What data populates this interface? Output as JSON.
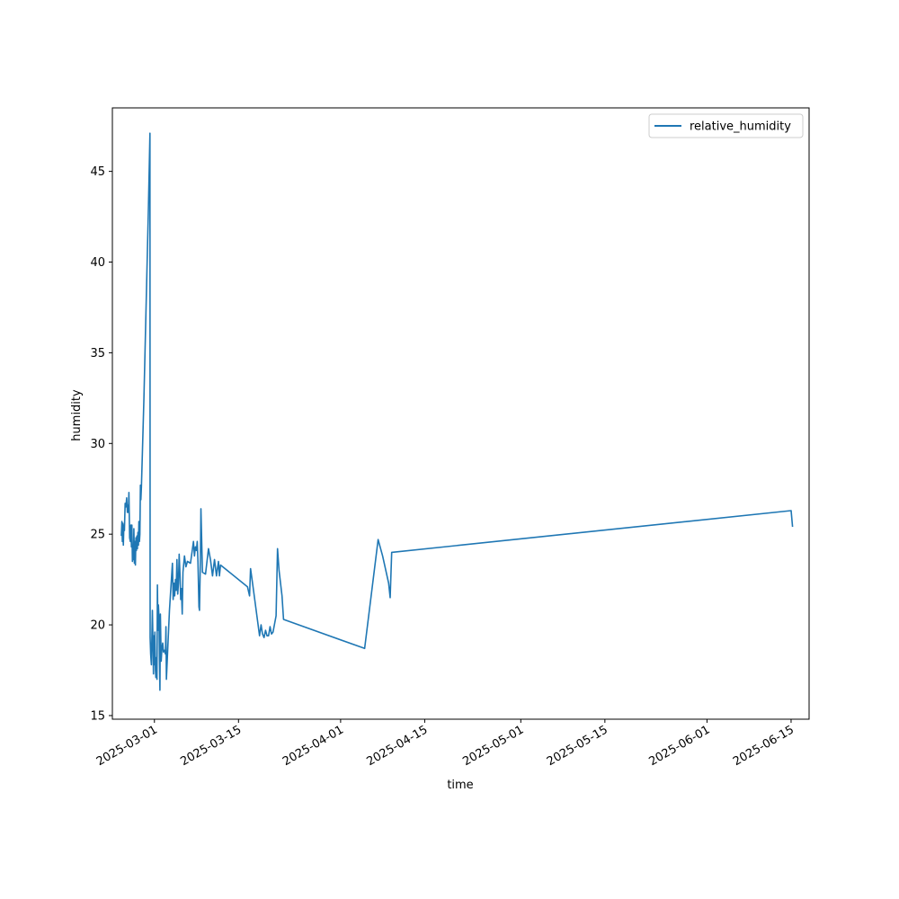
{
  "chart_data": {
    "type": "line",
    "title": "",
    "xlabel": "time",
    "ylabel": "humidity",
    "x_type": "date",
    "xlim": [
      "2025-02-22",
      "2025-06-18"
    ],
    "ylim": [
      14.8,
      48.5
    ],
    "y_ticks": [
      15,
      20,
      25,
      30,
      35,
      40,
      45
    ],
    "x_ticks": [
      "2025-03-01",
      "2025-03-15",
      "2025-04-01",
      "2025-04-15",
      "2025-05-01",
      "2025-05-15",
      "2025-06-01",
      "2025-06-15"
    ],
    "grid": false,
    "legend": {
      "position": "upper right"
    },
    "series": [
      {
        "name": "relative_humidity",
        "color": "#1f77b4",
        "points": [
          [
            "2025-02-23T12:00",
            24.9
          ],
          [
            "2025-02-23T14:00",
            25.7
          ],
          [
            "2025-02-23T16:00",
            24.6
          ],
          [
            "2025-02-23T18:00",
            25.6
          ],
          [
            "2025-02-23T20:00",
            24.4
          ],
          [
            "2025-02-23T22:00",
            25.5
          ],
          [
            "2025-02-24T00:00",
            25.2
          ],
          [
            "2025-02-24T03:00",
            26.7
          ],
          [
            "2025-02-24T06:00",
            26.5
          ],
          [
            "2025-02-24T09:00",
            27.0
          ],
          [
            "2025-02-24T12:00",
            26.2
          ],
          [
            "2025-02-24T14:00",
            26.6
          ],
          [
            "2025-02-24T16:00",
            26.2
          ],
          [
            "2025-02-24T18:00",
            27.3
          ],
          [
            "2025-02-24T21:00",
            24.8
          ],
          [
            "2025-02-25T00:00",
            24.6
          ],
          [
            "2025-02-25T02:00",
            25.5
          ],
          [
            "2025-02-25T04:00",
            24.3
          ],
          [
            "2025-02-25T06:00",
            25.5
          ],
          [
            "2025-02-25T08:00",
            23.5
          ],
          [
            "2025-02-25T10:00",
            24.3
          ],
          [
            "2025-02-25T12:00",
            23.6
          ],
          [
            "2025-02-25T14:00",
            25.3
          ],
          [
            "2025-02-25T16:00",
            23.4
          ],
          [
            "2025-02-25T18:00",
            24.6
          ],
          [
            "2025-02-25T20:00",
            23.3
          ],
          [
            "2025-02-25T22:00",
            24.8
          ],
          [
            "2025-02-26T00:00",
            24.1
          ],
          [
            "2025-02-26T02:00",
            24.9
          ],
          [
            "2025-02-26T04:00",
            24.2
          ],
          [
            "2025-02-26T06:00",
            25.1
          ],
          [
            "2025-02-26T08:00",
            24.4
          ],
          [
            "2025-02-26T10:00",
            25.7
          ],
          [
            "2025-02-26T12:00",
            24.6
          ],
          [
            "2025-02-26T14:00",
            25.0
          ],
          [
            "2025-02-26T16:00",
            27.7
          ],
          [
            "2025-02-26T18:00",
            26.9
          ],
          [
            "2025-02-26T20:00",
            27.6
          ],
          [
            "2025-02-27T00:00",
            29.5
          ],
          [
            "2025-02-27T06:00",
            32.5
          ],
          [
            "2025-02-28T00:00",
            43.0
          ],
          [
            "2025-02-28T06:00",
            47.1
          ],
          [
            "2025-02-28T07:00",
            19.3
          ],
          [
            "2025-02-28T09:00",
            18.4
          ],
          [
            "2025-02-28T11:00",
            18.0
          ],
          [
            "2025-02-28T12:00",
            17.8
          ],
          [
            "2025-02-28T14:00",
            19.5
          ],
          [
            "2025-02-28T16:00",
            20.8
          ],
          [
            "2025-02-28T18:00",
            19.2
          ],
          [
            "2025-02-28T20:00",
            17.3
          ],
          [
            "2025-02-28T22:00",
            19.4
          ],
          [
            "2025-03-01T00:00",
            17.8
          ],
          [
            "2025-03-01T02:00",
            19.6
          ],
          [
            "2025-03-01T04:00",
            17.5
          ],
          [
            "2025-03-01T06:00",
            17.1
          ],
          [
            "2025-03-01T08:00",
            18.2
          ],
          [
            "2025-03-01T10:00",
            17.0
          ],
          [
            "2025-03-01T12:00",
            22.2
          ],
          [
            "2025-03-01T14:00",
            19.7
          ],
          [
            "2025-03-01T16:00",
            21.1
          ],
          [
            "2025-03-01T18:00",
            20.5
          ],
          [
            "2025-03-01T20:00",
            18.2
          ],
          [
            "2025-03-01T22:00",
            16.4
          ],
          [
            "2025-03-02T00:00",
            20.6
          ],
          [
            "2025-03-02T03:00",
            18.0
          ],
          [
            "2025-03-02T06:00",
            18.7
          ],
          [
            "2025-03-02T09:00",
            19.0
          ],
          [
            "2025-03-02T12:00",
            18.5
          ],
          [
            "2025-03-02T16:00",
            18.6
          ],
          [
            "2025-03-02T20:00",
            18.4
          ],
          [
            "2025-03-02T22:00",
            19.9
          ],
          [
            "2025-03-03T00:00",
            17.0
          ],
          [
            "2025-03-03T12:00",
            20.8
          ],
          [
            "2025-03-04T00:00",
            23.4
          ],
          [
            "2025-03-04T03:00",
            21.4
          ],
          [
            "2025-03-04T06:00",
            22.3
          ],
          [
            "2025-03-04T09:00",
            21.6
          ],
          [
            "2025-03-04T12:00",
            22.5
          ],
          [
            "2025-03-04T15:00",
            21.9
          ],
          [
            "2025-03-04T18:00",
            23.6
          ],
          [
            "2025-03-04T21:00",
            21.7
          ],
          [
            "2025-03-05T00:00",
            22.3
          ],
          [
            "2025-03-05T03:00",
            23.9
          ],
          [
            "2025-03-05T06:00",
            22.8
          ],
          [
            "2025-03-05T09:00",
            21.4
          ],
          [
            "2025-03-05T12:00",
            22.0
          ],
          [
            "2025-03-05T15:00",
            20.6
          ],
          [
            "2025-03-05T18:00",
            22.9
          ],
          [
            "2025-03-06T00:00",
            23.8
          ],
          [
            "2025-03-06T06:00",
            23.2
          ],
          [
            "2025-03-06T12:00",
            23.5
          ],
          [
            "2025-03-07T00:00",
            23.4
          ],
          [
            "2025-03-07T08:00",
            24.2
          ],
          [
            "2025-03-07T12:00",
            24.6
          ],
          [
            "2025-03-07T16:00",
            23.8
          ],
          [
            "2025-03-07T20:00",
            24.3
          ],
          [
            "2025-03-08T00:00",
            24.1
          ],
          [
            "2025-03-08T03:00",
            24.6
          ],
          [
            "2025-03-08T06:00",
            23.5
          ],
          [
            "2025-03-08T10:00",
            21.0
          ],
          [
            "2025-03-08T12:00",
            20.8
          ],
          [
            "2025-03-08T16:00",
            23.9
          ],
          [
            "2025-03-08T18:00",
            26.4
          ],
          [
            "2025-03-09T00:00",
            22.9
          ],
          [
            "2025-03-09T12:00",
            22.8
          ],
          [
            "2025-03-10T00:00",
            24.2
          ],
          [
            "2025-03-10T08:00",
            23.6
          ],
          [
            "2025-03-10T16:00",
            22.7
          ],
          [
            "2025-03-11T00:00",
            23.6
          ],
          [
            "2025-03-11T08:00",
            22.7
          ],
          [
            "2025-03-11T16:00",
            23.5
          ],
          [
            "2025-03-11T20:00",
            22.7
          ],
          [
            "2025-03-12T00:00",
            23.3
          ],
          [
            "2025-03-16T12:00",
            22.1
          ],
          [
            "2025-03-16T20:00",
            21.6
          ],
          [
            "2025-03-17T00:00",
            23.1
          ],
          [
            "2025-03-17T12:00",
            21.9
          ],
          [
            "2025-03-18T12:00",
            19.4
          ],
          [
            "2025-03-18T18:00",
            20.0
          ],
          [
            "2025-03-19T00:00",
            19.5
          ],
          [
            "2025-03-19T06:00",
            19.3
          ],
          [
            "2025-03-19T12:00",
            19.7
          ],
          [
            "2025-03-19T18:00",
            19.4
          ],
          [
            "2025-03-20T00:00",
            19.4
          ],
          [
            "2025-03-20T06:00",
            19.9
          ],
          [
            "2025-03-20T12:00",
            19.5
          ],
          [
            "2025-03-20T18:00",
            19.6
          ],
          [
            "2025-03-21T06:00",
            20.5
          ],
          [
            "2025-03-21T12:00",
            24.2
          ],
          [
            "2025-03-21T18:00",
            23.0
          ],
          [
            "2025-03-22T06:00",
            21.6
          ],
          [
            "2025-03-22T12:00",
            20.3
          ],
          [
            "2025-04-05T00:00",
            18.7
          ],
          [
            "2025-04-07T06:00",
            24.7
          ],
          [
            "2025-04-08T00:00",
            23.8
          ],
          [
            "2025-04-09T00:00",
            22.3
          ],
          [
            "2025-04-09T06:00",
            21.5
          ],
          [
            "2025-04-09T12:00",
            24.0
          ],
          [
            "2025-06-15T00:00",
            26.3
          ],
          [
            "2025-06-15T06:00",
            25.4
          ]
        ]
      }
    ]
  }
}
